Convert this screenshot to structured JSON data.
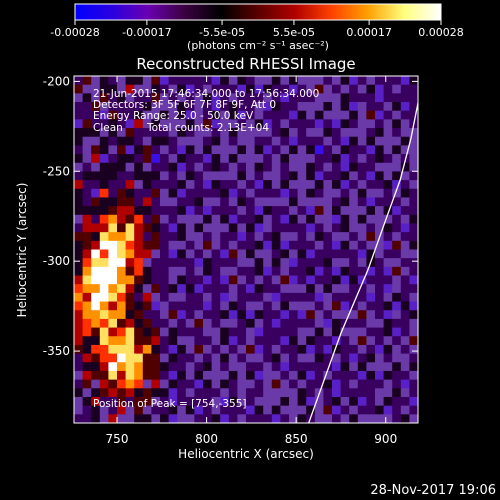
{
  "figure": {
    "title": "Reconstructed RHESSI Image",
    "date_stamp": "28-Nov-2017 19:06"
  },
  "colorbar": {
    "ticks": [
      "-0.00028",
      "-0.00017",
      "-5.5e-05",
      "5.5e-05",
      "0.00017",
      "0.00028"
    ],
    "tick_values": [
      -0.00028,
      -0.00017,
      -5.5e-05,
      5.5e-05,
      0.00017,
      0.00028
    ],
    "range": [
      -0.00028,
      0.00028
    ],
    "units": "(photons cm⁻² s⁻¹ asec⁻²)",
    "colormap": [
      "#0000ff",
      "#2a00e0",
      "#6a00b0",
      "#3a0040",
      "#000000",
      "#5a0000",
      "#b00000",
      "#ff4000",
      "#ffa000",
      "#ffff80",
      "#ffffff"
    ]
  },
  "annotations": {
    "time_range": "21-Jun-2015 17:46:34.000 to 17:56:34.000",
    "detectors": "Detectors: 3F 5F 6F 7F 8F 9F, Att 0",
    "energy": "Energy Range: 25.0 - 50.0 keV",
    "clean": "Clean",
    "counts": "Total counts: 2.13E+04",
    "peak": "Position of Peak = [754,-355]"
  },
  "chart_data": {
    "type": "heatmap",
    "title": "Reconstructed RHESSI Image",
    "xlabel": "Heliocentric X (arcsec)",
    "ylabel": "Heliocentric Y (arcsec)",
    "xlim": [
      726,
      918
    ],
    "ylim": [
      -390,
      -197
    ],
    "xticks": [
      750,
      800,
      850,
      900
    ],
    "yticks": [
      -200,
      -250,
      -300,
      -350
    ],
    "peak_position": [
      754,
      -355
    ],
    "limb_curve": {
      "x": [
        857,
        875,
        890,
        900,
        908,
        914,
        918
      ],
      "y": [
        -390,
        -340,
        -305,
        -277,
        -255,
        -232,
        -212
      ]
    },
    "bright_sources": [
      {
        "x": 754,
        "y": -355,
        "level": 1.0
      },
      {
        "x": 745,
        "y": -305,
        "level": 0.85
      },
      {
        "x": 752,
        "y": -285,
        "level": 0.6
      },
      {
        "x": 738,
        "y": -325,
        "level": 0.7
      }
    ]
  }
}
